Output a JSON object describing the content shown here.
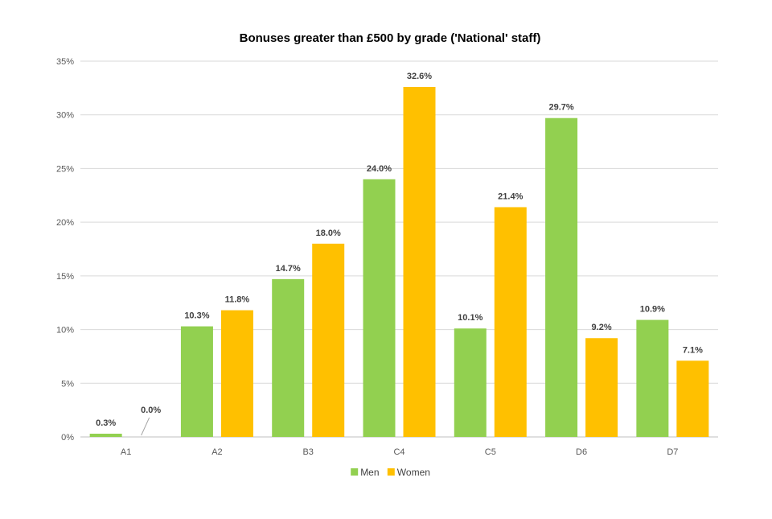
{
  "chart_data": {
    "type": "bar",
    "title": "Bonuses greater than £500 by grade ('National' staff)",
    "xlabel": "",
    "ylabel": "",
    "categories": [
      "A1",
      "A2",
      "B3",
      "C4",
      "C5",
      "D6",
      "D7"
    ],
    "series": [
      {
        "name": "Men",
        "color": "#92d050",
        "values": [
          0.3,
          10.3,
          14.7,
          24.0,
          10.1,
          29.7,
          10.9
        ],
        "labels": [
          "0.3%",
          "10.3%",
          "14.7%",
          "24.0%",
          "10.1%",
          "29.7%",
          "10.9%"
        ]
      },
      {
        "name": "Women",
        "color": "#ffc000",
        "values": [
          0.0,
          11.8,
          18.0,
          32.6,
          21.4,
          9.2,
          7.1
        ],
        "labels": [
          "0.0%",
          "11.8%",
          "18.0%",
          "32.6%",
          "21.4%",
          "9.2%",
          "7.1%"
        ]
      }
    ],
    "ylim": [
      0,
      35
    ],
    "yticks": [
      0,
      5,
      10,
      15,
      20,
      25,
      30,
      35
    ],
    "ytick_labels": [
      "0%",
      "5%",
      "10%",
      "15%",
      "20%",
      "25%",
      "30%",
      "35%"
    ],
    "grid": true,
    "legend_position": "bottom-center"
  }
}
